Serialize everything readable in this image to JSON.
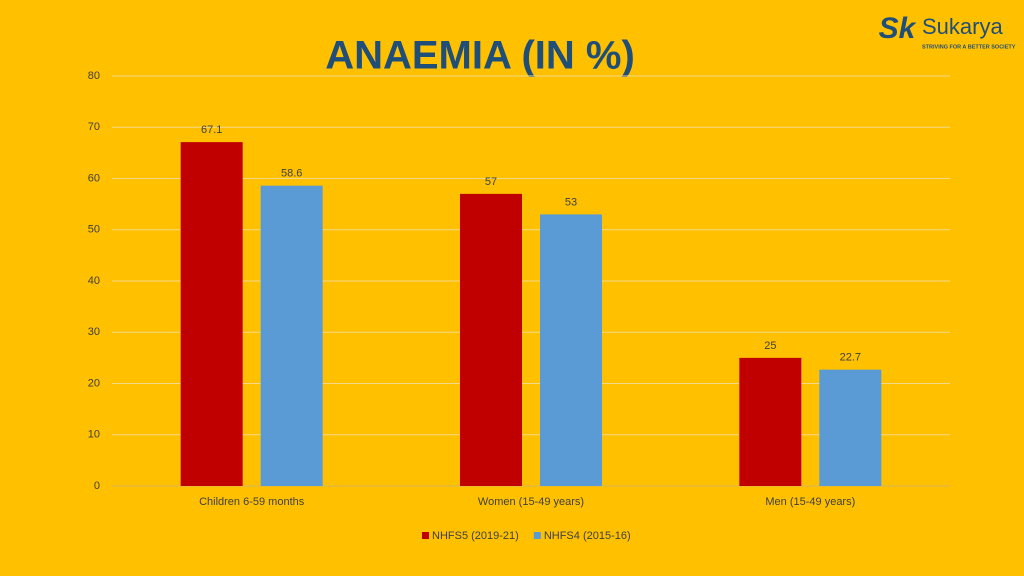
{
  "chart_data": {
    "type": "bar",
    "title": "ANAEMIA (IN %)",
    "categories": [
      "Children 6-59 months",
      "Women (15-49 years)",
      "Men (15-49 years)"
    ],
    "series": [
      {
        "name": "NHFS5 (2019-21)",
        "color": "#C00000",
        "values": [
          67.1,
          57,
          25
        ]
      },
      {
        "name": "NHFS4 (2015-16)",
        "color": "#5B9BD5",
        "values": [
          58.6,
          53,
          22.7
        ]
      }
    ],
    "ylim": [
      0,
      80
    ],
    "yticks": [
      0,
      10,
      20,
      30,
      40,
      50,
      60,
      70,
      80
    ],
    "grid": true,
    "legend": "bottom"
  },
  "logo": {
    "mark": "Sk",
    "name": "Sukarya",
    "tagline": "STRIVING FOR A BETTER SOCIETY"
  }
}
